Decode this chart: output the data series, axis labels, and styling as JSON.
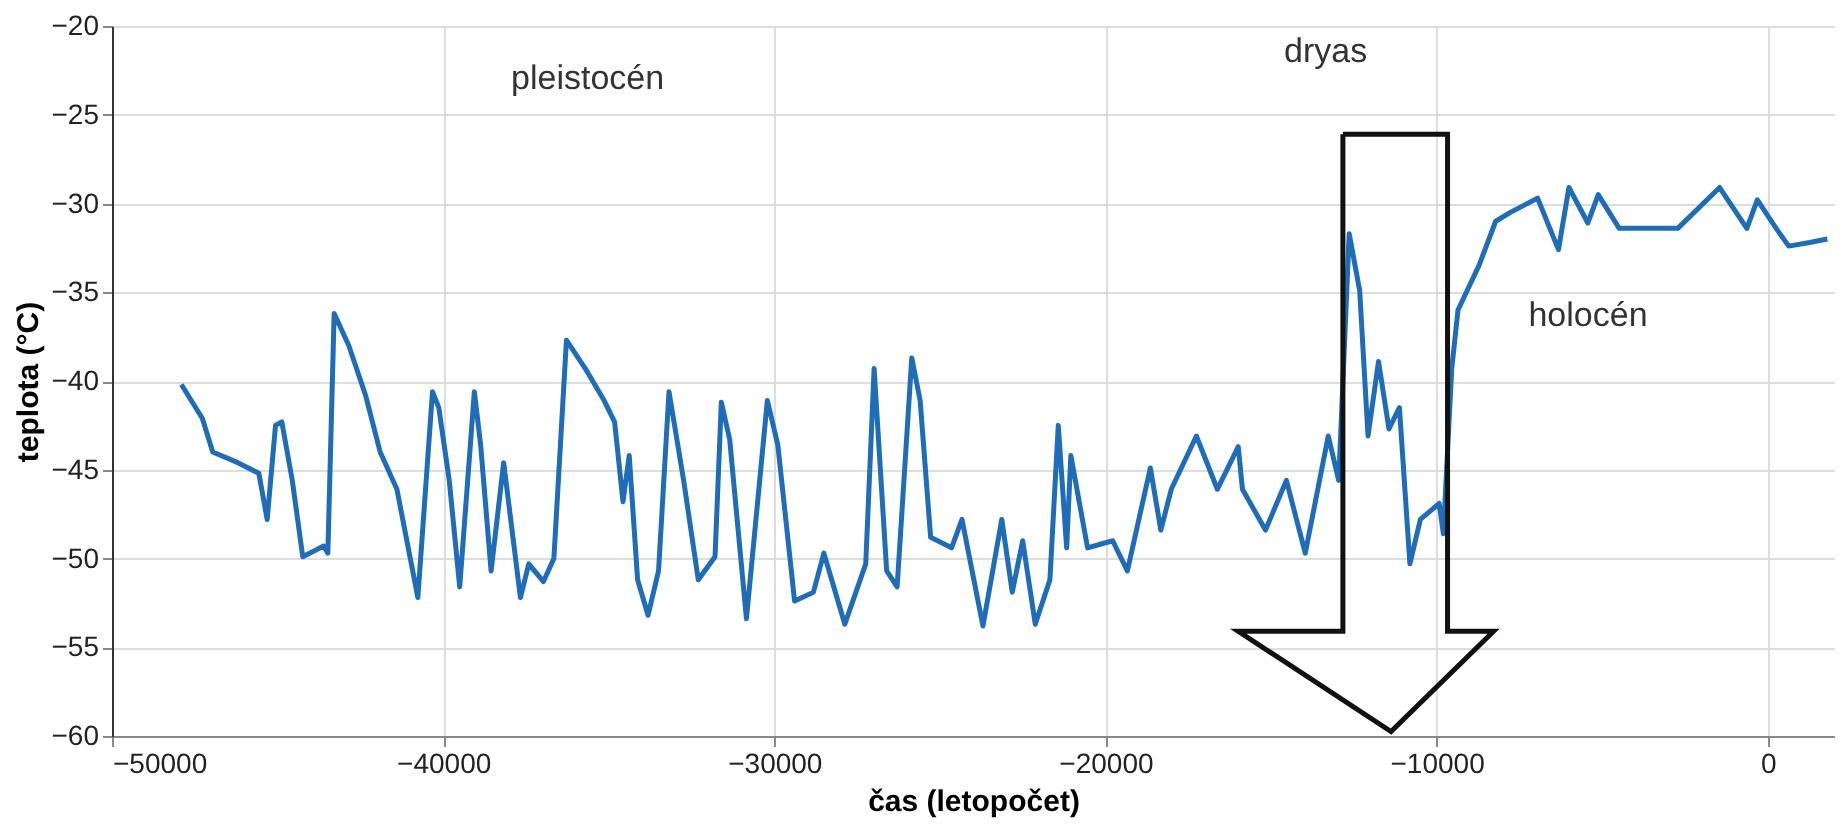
{
  "chart_data": {
    "type": "line",
    "xlabel": "čas (letopočet)",
    "ylabel": "teplota (°C)",
    "xlim": [
      -50000,
      2000
    ],
    "xticks": [
      -50000,
      -40000,
      -30000,
      -20000,
      -10000,
      0
    ],
    "ylim": [
      -60,
      -20
    ],
    "yticks": [
      -60,
      -55,
      -50,
      -45,
      -40,
      -35,
      -30,
      -25,
      -20
    ],
    "grid": true,
    "line_style": "solid",
    "marker": "none",
    "annotations": [
      "pleistocén",
      "dryas",
      "holocén"
    ],
    "series": [
      {
        "color": "#1f6cb8",
        "x": [
          -47906,
          -47274,
          -46958,
          -46199,
          -45567,
          -45314,
          -45062,
          -44872,
          -44556,
          -44240,
          -43608,
          -43482,
          -43292,
          -42850,
          -42344,
          -41902,
          -41396,
          -40764,
          -40322,
          -40132,
          -39816,
          -39500,
          -39058,
          -38868,
          -38552,
          -38173,
          -37667,
          -37414,
          -36972,
          -36656,
          -36277,
          -35708,
          -35139,
          -34823,
          -34570,
          -34381,
          -34128,
          -33812,
          -33496,
          -33180,
          -32738,
          -32295,
          -31790,
          -31600,
          -31347,
          -30842,
          -30210,
          -29894,
          -29388,
          -28819,
          -28503,
          -27871,
          -27239,
          -26986,
          -26607,
          -26291,
          -25849,
          -25596,
          -25280,
          -24648,
          -24332,
          -23700,
          -23131,
          -22815,
          -22499,
          -22120,
          -21678,
          -21425,
          -21172,
          -21046,
          -20540,
          -19782,
          -19339,
          -18644,
          -18328,
          -18012,
          -17254,
          -16622,
          -15990,
          -15863,
          -15168,
          -14536,
          -13967,
          -13272,
          -12956,
          -12640,
          -12324,
          -12071,
          -11755,
          -11439,
          -11123,
          -10807,
          -10491,
          -9922,
          -9796,
          -9543,
          -9354,
          -8722,
          -8216,
          -7774,
          -6952,
          -6320,
          -6004,
          -5435,
          -5119,
          -4487,
          -3539,
          -2718,
          -1454,
          -632,
          -316,
          253,
          632,
          1264,
          1800
        ],
        "values": [
          -40.2,
          -42.1,
          -44.0,
          -44.6,
          -45.2,
          -47.8,
          -42.5,
          -42.3,
          -45.6,
          -49.9,
          -49.3,
          -49.7,
          -36.2,
          -38.0,
          -40.8,
          -44.0,
          -46.1,
          -52.2,
          -40.6,
          -41.5,
          -45.6,
          -51.6,
          -40.6,
          -43.6,
          -50.7,
          -44.6,
          -52.2,
          -50.3,
          -51.3,
          -50.0,
          -37.7,
          -39.3,
          -41.1,
          -42.3,
          -46.8,
          -44.2,
          -51.2,
          -53.2,
          -50.7,
          -40.6,
          -45.6,
          -51.2,
          -49.9,
          -41.2,
          -43.3,
          -53.4,
          -41.1,
          -43.6,
          -52.4,
          -51.9,
          -49.7,
          -53.7,
          -50.3,
          -39.3,
          -50.7,
          -51.6,
          -38.7,
          -41.1,
          -48.8,
          -49.4,
          -47.8,
          -53.8,
          -47.8,
          -51.9,
          -49.0,
          -53.7,
          -51.2,
          -42.5,
          -49.4,
          -44.2,
          -49.4,
          -49.0,
          -50.7,
          -44.9,
          -48.4,
          -46.1,
          -43.1,
          -46.1,
          -43.7,
          -46.1,
          -48.4,
          -45.6,
          -49.7,
          -43.1,
          -45.6,
          -31.7,
          -34.9,
          -43.1,
          -38.9,
          -42.7,
          -41.5,
          -50.3,
          -47.8,
          -46.9,
          -48.6,
          -39.3,
          -36.0,
          -33.5,
          -31.0,
          -30.5,
          -29.7,
          -32.6,
          -29.1,
          -31.1,
          -29.5,
          -31.4,
          -31.4,
          -31.4,
          -29.1,
          -31.4,
          -29.8,
          -31.4,
          -32.4,
          -32.2,
          -32.0
        ]
      }
    ]
  }
}
